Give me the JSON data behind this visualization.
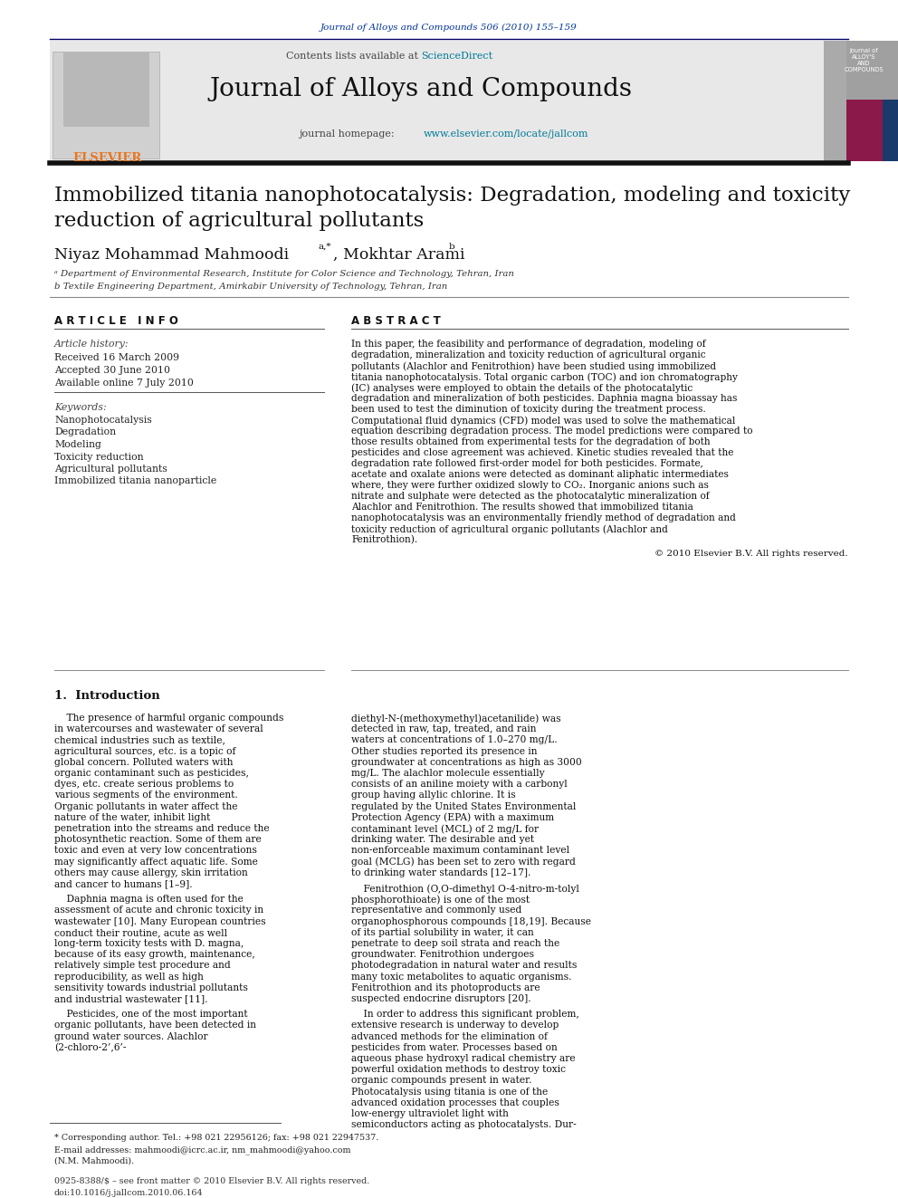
{
  "journal_ref": "Journal of Alloys and Compounds 506 (2010) 155–159",
  "journal_name": "Journal of Alloys and Compounds",
  "contents_line": "Contents lists available at ScienceDirect",
  "sciencedirect_color": "#007a99",
  "homepage_url_color": "#007a99",
  "title": "Immobilized titania nanophotocatalysis: Degradation, modeling and toxicity\nreduction of agricultural pollutants",
  "authors": "Niyaz Mohammad Mahmoodi",
  "author_superscript": "a,*",
  "author2": ", Mokhtar Arami",
  "author2_superscript": "b",
  "affil_a": "ᵃ Department of Environmental Research, Institute for Color Science and Technology, Tehran, Iran",
  "affil_b": "b Textile Engineering Department, Amirkabir University of Technology, Tehran, Iran",
  "section_article_info": "A R T I C L E   I N F O",
  "section_abstract": "A B S T R A C T",
  "article_history_label": "Article history:",
  "received": "Received 16 March 2009",
  "accepted": "Accepted 30 June 2010",
  "available": "Available online 7 July 2010",
  "keywords_label": "Keywords:",
  "keywords": [
    "Nanophotocatalysis",
    "Degradation",
    "Modeling",
    "Toxicity reduction",
    "Agricultural pollutants",
    "Immobilized titania nanoparticle"
  ],
  "abstract_text": "In this paper, the feasibility and performance of degradation, modeling of degradation, mineralization and toxicity reduction of agricultural organic pollutants (Alachlor and Fenitrothion) have been studied using immobilized titania nanophotocatalysis. Total organic carbon (TOC) and ion chromatography (IC) analyses were employed to obtain the details of the photocatalytic degradation and mineralization of both pesticides. Daphnia magna bioassay has been used to test the diminution of toxicity during the treatment process. Computational fluid dynamics (CFD) model was used to solve the mathematical equation describing degradation process. The model predictions were compared to those results obtained from experimental tests for the degradation of both pesticides and close agreement was achieved. Kinetic studies revealed that the degradation rate followed first-order model for both pesticides. Formate, acetate and oxalate anions were detected as dominant aliphatic intermediates where, they were further oxidized slowly to CO₂. Inorganic anions such as nitrate and sulphate were detected as the photocatalytic mineralization of Alachlor and Fenitrothion. The results showed that immobilized titania nanophotocatalysis was an environmentally friendly method of degradation and toxicity reduction of agricultural organic pollutants (Alachlor and Fenitrothion).",
  "copyright": "© 2010 Elsevier B.V. All rights reserved.",
  "section1_title": "1.  Introduction",
  "intro_col1_p1": "    The presence of harmful organic compounds in watercourses and wastewater of several chemical industries such as textile, agricultural sources, etc. is a topic of global concern. Polluted waters with organic contaminant such as pesticides, dyes, etc. create serious problems to various segments of the environment. Organic pollutants in water affect the nature of the water, inhibit light penetration into the streams and reduce the photosynthetic reaction. Some of them are toxic and even at very low concentrations may significantly affect aquatic life. Some others may cause allergy, skin irritation and cancer to humans [1–9].",
  "intro_col1_p2": "    Daphnia magna is often used for the assessment of acute and chronic toxicity in wastewater [10]. Many European countries conduct their routine, acute as well long-term toxicity tests with D. magna, because of its easy growth, maintenance, relatively simple test procedure and reproducibility, as well as high sensitivity towards industrial pollutants and industrial wastewater [11].",
  "intro_col1_p3": "    Pesticides, one of the most important organic pollutants, have been detected in ground water sources. Alachlor (2-chloro-2’,6’-",
  "intro_col2_p1": "diethyl-N-(methoxymethyl)acetanilide) was detected in raw, tap, treated, and rain waters at concentrations of 1.0–270 mg/L. Other studies reported its presence in groundwater at concentrations as high as 3000 mg/L. The alachlor molecule essentially consists of an aniline moiety with a carbonyl group having allylic chlorine. It is regulated by the United States Environmental Protection Agency (EPA) with a maximum contaminant level (MCL) of 2 mg/L for drinking water. The desirable and yet non-enforceable maximum contaminant level goal (MCLG) has been set to zero with regard to drinking water standards [12–17].",
  "intro_col2_p2": "    Fenitrothion (O,O-dimethyl O-4-nitro-m-tolyl phosphorothioate) is one of the most representative and commonly used organophosphorous compounds [18,19]. Because of its partial solubility in water, it can penetrate to deep soil strata and reach the groundwater. Fenitrothion undergoes photodegradation in natural water and results many toxic metabolites to aquatic organisms. Fenitrothion and its photoproducts are suspected endocrine disruptors [20].",
  "intro_col2_p3": "    In order to address this significant problem, extensive research is underway to develop advanced methods for the elimination of pesticides from water. Processes based on aqueous phase hydroxyl radical chemistry are powerful oxidation methods to destroy toxic organic compounds present in water. Photocatalysis using titania is one of the advanced oxidation processes that couples low-energy ultraviolet light with semiconductors acting as photocatalysts. Dur-",
  "footnote_star": "* Corresponding author. Tel.: +98 021 22956126; fax: +98 021 22947537.",
  "footnote_email": "E-mail addresses: mahmoodi@icrc.ac.ir, nm_mahmoodi@yahoo.com",
  "footnote_name": "(N.M. Mahmoodi).",
  "issn_line": "0925-8388/$ – see front matter © 2010 Elsevier B.V. All rights reserved.",
  "doi_line": "doi:10.1016/j.jallcom.2010.06.164",
  "header_color": "#003399",
  "orange_color": "#e87722",
  "bg_header": "#e8e8e8"
}
